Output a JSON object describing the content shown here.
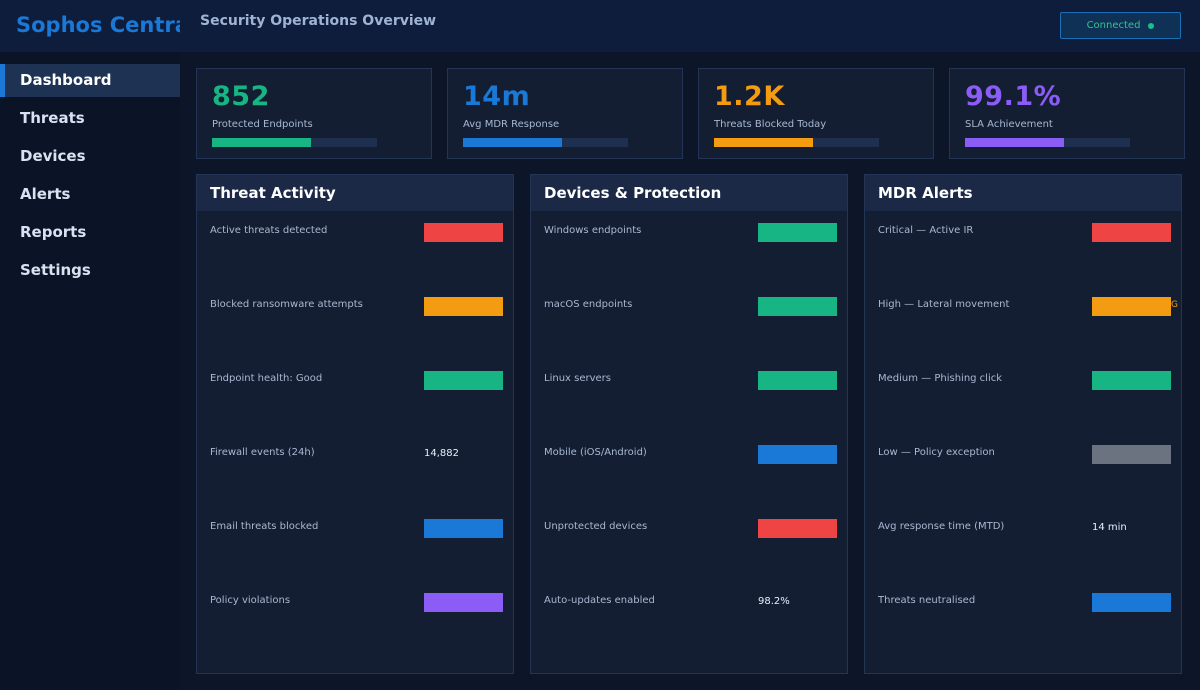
{
  "app": {
    "brand": "Sophos Central",
    "page_title": "Security Operations Overview"
  },
  "status": {
    "label": "Connected",
    "color": "#17c08a"
  },
  "sidebar": {
    "items": [
      {
        "label": "Dashboard",
        "active": true
      },
      {
        "label": "Threats"
      },
      {
        "label": "Devices"
      },
      {
        "label": "Alerts"
      },
      {
        "label": "Reports"
      },
      {
        "label": "Settings"
      }
    ]
  },
  "kpis": [
    {
      "value": "852",
      "label": "Protected Endpoints",
      "color": "#17b583",
      "progress": 0.6
    },
    {
      "value": "14m",
      "label": "Avg MDR Response",
      "color": "#1a78d6",
      "progress": 0.6
    },
    {
      "value": "1.2K",
      "label": "Threats Blocked Today",
      "color": "#f39c12",
      "progress": 0.6
    },
    {
      "value": "99.1%",
      "label": "SLA Achievement",
      "color": "#8b5cf6",
      "progress": 0.6
    }
  ],
  "panels": [
    {
      "title": "Threat Activity",
      "rows": [
        {
          "label": "Active threats detected",
          "bar_color": "#ef4444"
        },
        {
          "label": "Blocked ransomware attempts",
          "bar_color": "#f39c12"
        },
        {
          "label": "Endpoint health: Good",
          "bar_color": "#17b583"
        },
        {
          "label": "Firewall events (24h)",
          "value": "14,882"
        },
        {
          "label": "Email threats blocked",
          "bar_color": "#1a78d6"
        },
        {
          "label": "Policy violations",
          "bar_color": "#8b5cf6"
        }
      ]
    },
    {
      "title": "Devices & Protection",
      "rows": [
        {
          "label": "Windows endpoints",
          "bar_color": "#17b583"
        },
        {
          "label": "macOS endpoints",
          "bar_color": "#17b583"
        },
        {
          "label": "Linux servers",
          "bar_color": "#17b583"
        },
        {
          "label": "Mobile (iOS/Android)",
          "bar_color": "#1a78d6"
        },
        {
          "label": "Unprotected devices",
          "bar_color": "#ef4444"
        },
        {
          "label": "Auto-updates enabled",
          "value": "98.2%"
        }
      ]
    },
    {
      "title": "MDR Alerts",
      "rows": [
        {
          "label": "Critical — Active IR",
          "bar_color": "#ef4444"
        },
        {
          "label": "High — Lateral movement",
          "bar_color": "#f39c12",
          "bar_tail": "G"
        },
        {
          "label": "Medium — Phishing click",
          "bar_color": "#17b583"
        },
        {
          "label": "Low — Policy exception",
          "bar_color": "#6b7280"
        },
        {
          "label": "Avg response time (MTD)",
          "value": "14 min"
        },
        {
          "label": "Threats neutralised",
          "bar_color": "#1a78d6"
        }
      ]
    }
  ]
}
